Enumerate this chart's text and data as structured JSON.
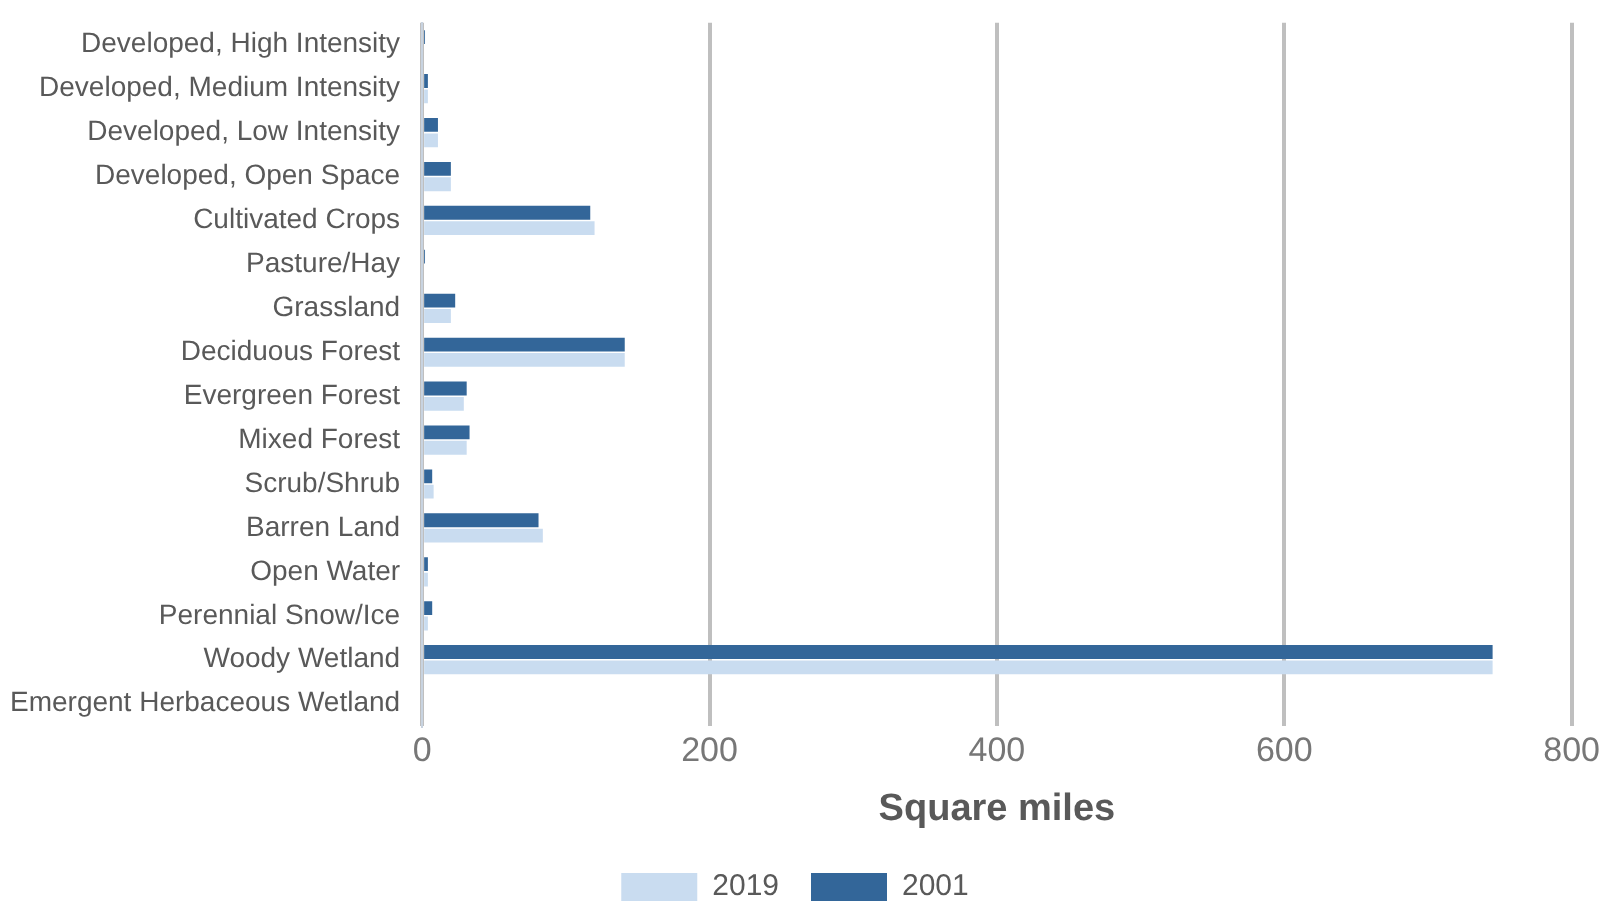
{
  "chart_data": {
    "type": "bar",
    "orientation": "horizontal",
    "xlabel": "Square miles",
    "categories": [
      "Developed, High Intensity",
      "Developed, Medium Intensity",
      "Developed, Low Intensity",
      "Developed, Open Space",
      "Cultivated Crops",
      "Pasture/Hay",
      "Grassland",
      "Deciduous Forest",
      "Evergreen Forest",
      "Mixed Forest",
      "Scrub/Shrub",
      "Barren Land",
      "Open Water",
      "Perennial Snow/Ice",
      "Woody Wetland",
      "Emergent Herbaceous Wetland"
    ],
    "series": [
      {
        "name": "2019",
        "color": "#c9dcf0",
        "values": [
          0,
          4,
          11,
          20,
          120,
          0,
          20,
          141,
          29,
          31,
          8,
          84,
          4,
          4,
          745,
          0
        ]
      },
      {
        "name": "2001",
        "color": "#336699",
        "values": [
          2,
          4,
          11,
          20,
          117,
          2,
          23,
          141,
          31,
          33,
          7,
          81,
          4,
          7,
          745,
          0
        ]
      }
    ],
    "xlim": [
      0,
      800
    ],
    "xticks": [
      0,
      200,
      400,
      600,
      800
    ],
    "grid": "x",
    "legend": "bottom"
  }
}
